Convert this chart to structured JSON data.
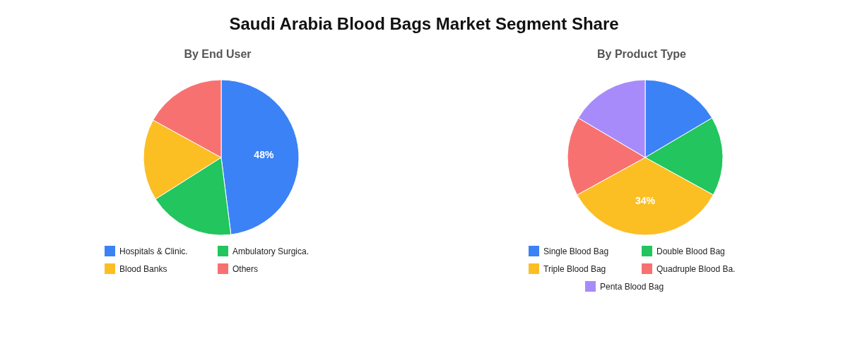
{
  "chart_data": [
    {
      "type": "pie",
      "title": "Saudi Arabia Blood Bags Market Segment Share",
      "subtitle": "By End User",
      "categories": [
        "Hospitals & Clinic.",
        "Ambulatory Surgica.",
        "Blood Banks",
        "Others"
      ],
      "values": [
        48,
        18,
        17,
        17
      ],
      "colors": [
        "#3b82f6",
        "#22c55e",
        "#fbbf24",
        "#f87171"
      ],
      "value_labels": [
        "48%",
        null,
        null,
        null
      ],
      "legend": "bottom"
    },
    {
      "type": "pie",
      "subtitle": "By Product Type",
      "categories": [
        "Single Blood Bag",
        "Double Blood Bag",
        "Triple Blood Bag",
        "Quadruple Blood Ba.",
        "Penta Blood Bag"
      ],
      "values": [
        16.5,
        16.5,
        34,
        16.5,
        16.5
      ],
      "colors": [
        "#3b82f6",
        "#22c55e",
        "#fbbf24",
        "#f87171",
        "#a78bfa"
      ],
      "value_labels": [
        null,
        null,
        "34%",
        null,
        null
      ],
      "legend": "bottom"
    }
  ]
}
